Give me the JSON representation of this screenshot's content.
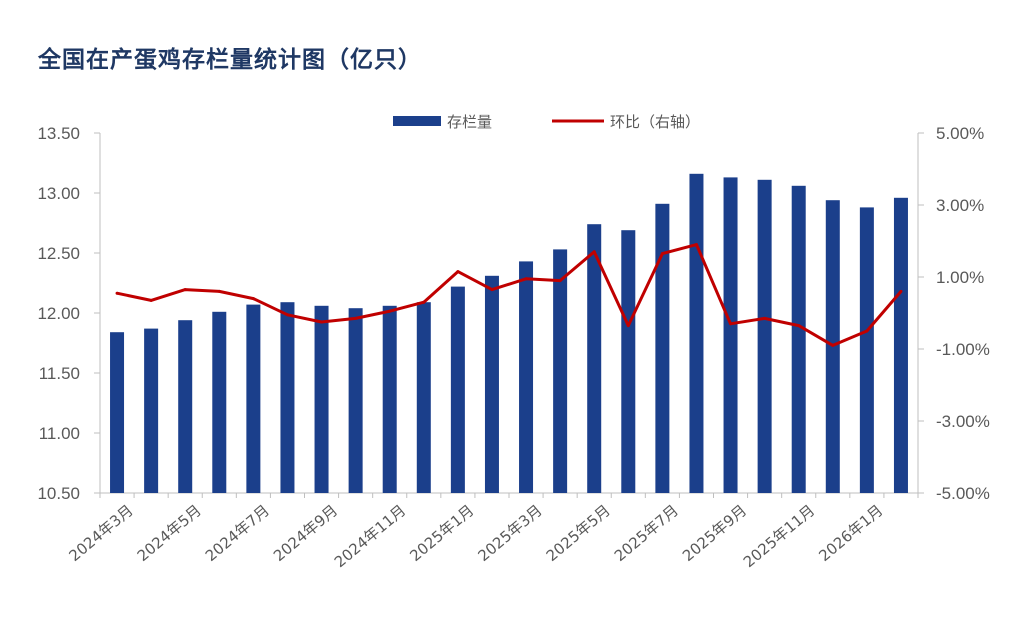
{
  "title": "全国在产蛋鸡存栏量统计图（亿只）",
  "chart_data": {
    "type": "bar",
    "title": "全国在产蛋鸡存栏量统计图（亿只）",
    "colors": {
      "bar": "#1b3f8b",
      "line": "#c00000",
      "axis": "#bfbfbf",
      "text": "#595959",
      "title": "#1f3864"
    },
    "legend": {
      "placement": "top-center",
      "items": [
        {
          "label": "存栏量",
          "kind": "bar"
        },
        {
          "label": "环比（右轴）",
          "kind": "line"
        }
      ]
    },
    "left_axis": {
      "ylim": [
        10.5,
        13.5
      ],
      "ticks": [
        "13.50",
        "13.00",
        "12.50",
        "12.00",
        "11.50",
        "11.00",
        "10.50"
      ],
      "tick_values": [
        13.5,
        13.0,
        12.5,
        12.0,
        11.5,
        11.0,
        10.5
      ]
    },
    "right_axis": {
      "ylim": [
        -5.0,
        5.0
      ],
      "ticks": [
        "5.00%",
        "3.00%",
        "1.00%",
        "-1.00%",
        "-3.00%",
        "-5.00%"
      ],
      "tick_values": [
        5,
        3,
        1,
        -1,
        -3,
        -5
      ]
    },
    "x_tick_labels": [
      "2024年3月",
      "2024年5月",
      "2024年7月",
      "2024年9月",
      "2024年11月",
      "2025年1月",
      "2025年3月",
      "2025年5月",
      "2025年7月",
      "2025年9月",
      "2025年11月",
      "2026年1月"
    ],
    "x_tick_label_every": 2,
    "categories": [
      "2024年3月",
      "2024年4月",
      "2024年5月",
      "2024年6月",
      "2024年7月",
      "2024年8月",
      "2024年9月",
      "2024年10月",
      "2024年11月",
      "2024年12月",
      "2025年1月",
      "2025年2月",
      "2025年3月",
      "2025年4月",
      "2025年5月",
      "2025年6月",
      "2025年7月",
      "2025年8月",
      "2025年9月",
      "2025年10月",
      "2025年11月",
      "2025年12月",
      "2026年1月",
      "2026年2月"
    ],
    "series": [
      {
        "name": "存栏量",
        "type": "bar",
        "axis": "left",
        "values": [
          11.84,
          11.87,
          11.94,
          12.01,
          12.07,
          12.09,
          12.06,
          12.04,
          12.06,
          12.09,
          12.22,
          12.31,
          12.43,
          12.53,
          12.74,
          12.69,
          12.91,
          13.16,
          13.13,
          13.11,
          13.06,
          12.94,
          12.88,
          12.96
        ]
      },
      {
        "name": "环比（右轴）",
        "type": "line",
        "axis": "right",
        "values": [
          0.55,
          0.35,
          0.65,
          0.6,
          0.4,
          -0.05,
          -0.25,
          -0.15,
          0.05,
          0.3,
          1.15,
          0.65,
          0.95,
          0.9,
          1.7,
          -0.35,
          1.65,
          1.9,
          -0.3,
          -0.15,
          -0.35,
          -0.9,
          -0.5,
          0.6
        ]
      }
    ],
    "grid": false
  }
}
